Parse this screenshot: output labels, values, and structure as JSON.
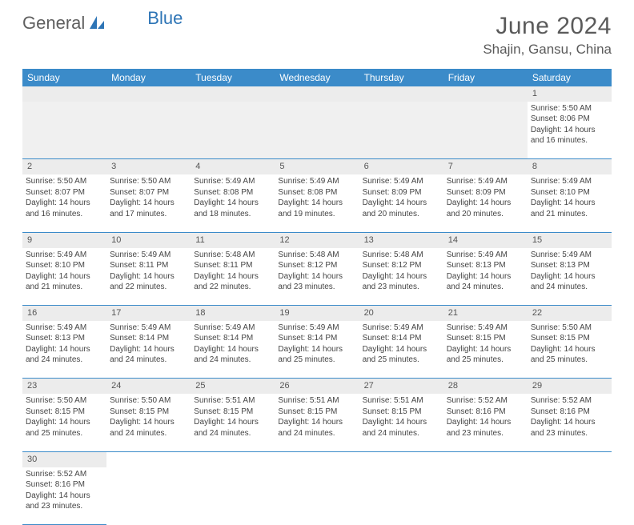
{
  "brand": {
    "part1": "General",
    "part2": "Blue",
    "text_color": "#5f5f5f",
    "accent_color": "#2e75b6"
  },
  "title": "June 2024",
  "location": "Shajin, Gansu, China",
  "header_bg": "#3b8bc9",
  "header_fg": "#ffffff",
  "daynum_bg": "#ececec",
  "border_color": "#3b8bc9",
  "columns": [
    "Sunday",
    "Monday",
    "Tuesday",
    "Wednesday",
    "Thursday",
    "Friday",
    "Saturday"
  ],
  "lead_blanks": 6,
  "days": [
    {
      "n": 1,
      "rise": "5:50 AM",
      "set": "8:06 PM",
      "dlh": 14,
      "dlm": 16
    },
    {
      "n": 2,
      "rise": "5:50 AM",
      "set": "8:07 PM",
      "dlh": 14,
      "dlm": 16
    },
    {
      "n": 3,
      "rise": "5:50 AM",
      "set": "8:07 PM",
      "dlh": 14,
      "dlm": 17
    },
    {
      "n": 4,
      "rise": "5:49 AM",
      "set": "8:08 PM",
      "dlh": 14,
      "dlm": 18
    },
    {
      "n": 5,
      "rise": "5:49 AM",
      "set": "8:08 PM",
      "dlh": 14,
      "dlm": 19
    },
    {
      "n": 6,
      "rise": "5:49 AM",
      "set": "8:09 PM",
      "dlh": 14,
      "dlm": 20
    },
    {
      "n": 7,
      "rise": "5:49 AM",
      "set": "8:09 PM",
      "dlh": 14,
      "dlm": 20
    },
    {
      "n": 8,
      "rise": "5:49 AM",
      "set": "8:10 PM",
      "dlh": 14,
      "dlm": 21
    },
    {
      "n": 9,
      "rise": "5:49 AM",
      "set": "8:10 PM",
      "dlh": 14,
      "dlm": 21
    },
    {
      "n": 10,
      "rise": "5:49 AM",
      "set": "8:11 PM",
      "dlh": 14,
      "dlm": 22
    },
    {
      "n": 11,
      "rise": "5:48 AM",
      "set": "8:11 PM",
      "dlh": 14,
      "dlm": 22
    },
    {
      "n": 12,
      "rise": "5:48 AM",
      "set": "8:12 PM",
      "dlh": 14,
      "dlm": 23
    },
    {
      "n": 13,
      "rise": "5:48 AM",
      "set": "8:12 PM",
      "dlh": 14,
      "dlm": 23
    },
    {
      "n": 14,
      "rise": "5:49 AM",
      "set": "8:13 PM",
      "dlh": 14,
      "dlm": 24
    },
    {
      "n": 15,
      "rise": "5:49 AM",
      "set": "8:13 PM",
      "dlh": 14,
      "dlm": 24
    },
    {
      "n": 16,
      "rise": "5:49 AM",
      "set": "8:13 PM",
      "dlh": 14,
      "dlm": 24
    },
    {
      "n": 17,
      "rise": "5:49 AM",
      "set": "8:14 PM",
      "dlh": 14,
      "dlm": 24
    },
    {
      "n": 18,
      "rise": "5:49 AM",
      "set": "8:14 PM",
      "dlh": 14,
      "dlm": 24
    },
    {
      "n": 19,
      "rise": "5:49 AM",
      "set": "8:14 PM",
      "dlh": 14,
      "dlm": 25
    },
    {
      "n": 20,
      "rise": "5:49 AM",
      "set": "8:14 PM",
      "dlh": 14,
      "dlm": 25
    },
    {
      "n": 21,
      "rise": "5:49 AM",
      "set": "8:15 PM",
      "dlh": 14,
      "dlm": 25
    },
    {
      "n": 22,
      "rise": "5:50 AM",
      "set": "8:15 PM",
      "dlh": 14,
      "dlm": 25
    },
    {
      "n": 23,
      "rise": "5:50 AM",
      "set": "8:15 PM",
      "dlh": 14,
      "dlm": 25
    },
    {
      "n": 24,
      "rise": "5:50 AM",
      "set": "8:15 PM",
      "dlh": 14,
      "dlm": 24
    },
    {
      "n": 25,
      "rise": "5:51 AM",
      "set": "8:15 PM",
      "dlh": 14,
      "dlm": 24
    },
    {
      "n": 26,
      "rise": "5:51 AM",
      "set": "8:15 PM",
      "dlh": 14,
      "dlm": 24
    },
    {
      "n": 27,
      "rise": "5:51 AM",
      "set": "8:15 PM",
      "dlh": 14,
      "dlm": 24
    },
    {
      "n": 28,
      "rise": "5:52 AM",
      "set": "8:16 PM",
      "dlh": 14,
      "dlm": 23
    },
    {
      "n": 29,
      "rise": "5:52 AM",
      "set": "8:16 PM",
      "dlh": 14,
      "dlm": 23
    },
    {
      "n": 30,
      "rise": "5:52 AM",
      "set": "8:16 PM",
      "dlh": 14,
      "dlm": 23
    }
  ],
  "labels": {
    "sunrise": "Sunrise:",
    "sunset": "Sunset:",
    "daylight": "Daylight:",
    "hours": "hours",
    "and": "and",
    "minutes": "minutes."
  }
}
